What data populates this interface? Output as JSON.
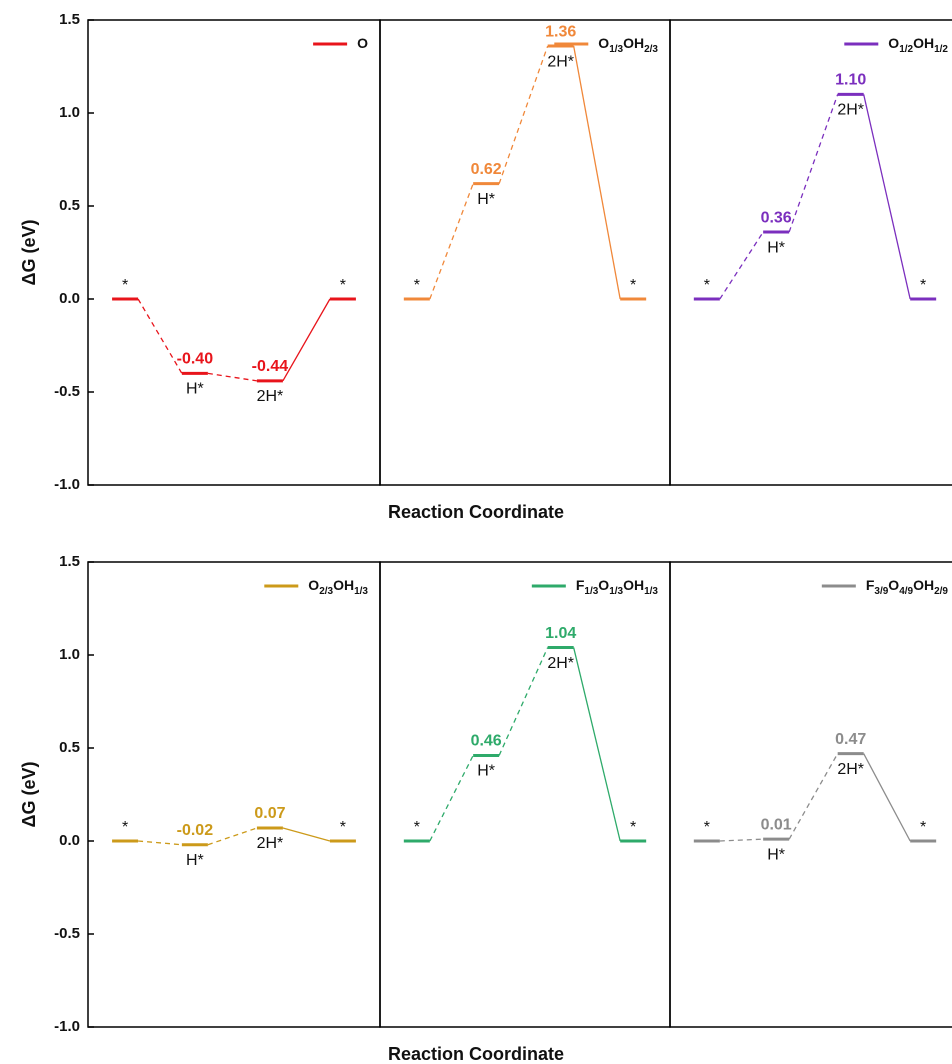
{
  "chart_data": [
    {
      "type": "energy",
      "ylabel": "ΔG (eV)",
      "xlabel": "Reaction Coordinate",
      "ylim": [
        -1,
        1.5
      ],
      "yticks": [
        {
          "value": 1.5,
          "label": "1.5"
        },
        {
          "value": 1,
          "label": "1.0"
        },
        {
          "value": 0.5,
          "label": "0.5"
        },
        {
          "value": 0,
          "label": "0.0"
        },
        {
          "value": -0.5,
          "label": "-0.5"
        },
        {
          "value": -1,
          "label": "-1.0"
        }
      ],
      "panels": [
        {
          "categories": [
            "*",
            "H*",
            "2H*",
            "*"
          ],
          "series": [
            {
              "name": "O",
              "color": "#e8141b",
              "values": [
                0,
                -0.4,
                -0.44,
                0
              ],
              "value_labels": [
                null,
                "-0.40",
                "-0.44",
                null
              ]
            }
          ]
        },
        {
          "categories": [
            "*",
            "H*",
            "2H*",
            "*"
          ],
          "series": [
            {
              "name": "O1/3OH2/3",
              "color": "#f0883a",
              "values": [
                0,
                0.62,
                1.36,
                0
              ],
              "value_labels": [
                null,
                "0.62",
                "1.36",
                null
              ]
            }
          ]
        },
        {
          "categories": [
            "*",
            "H*",
            "2H*",
            "*"
          ],
          "series": [
            {
              "name": "O1/2OH1/2",
              "color": "#7b2fbe",
              "values": [
                0,
                0.36,
                1.1,
                0
              ],
              "value_labels": [
                null,
                "0.36",
                "1.10",
                null
              ]
            }
          ]
        }
      ]
    },
    {
      "type": "energy",
      "ylabel": "ΔG (eV)",
      "xlabel": "Reaction Coordinate",
      "ylim": [
        -1,
        1.5
      ],
      "yticks": [
        {
          "value": 1.5,
          "label": "1.5"
        },
        {
          "value": 1,
          "label": "1.0"
        },
        {
          "value": 0.5,
          "label": "0.5"
        },
        {
          "value": 0,
          "label": "0.0"
        },
        {
          "value": -0.5,
          "label": "-0.5"
        },
        {
          "value": -1,
          "label": "-1.0"
        }
      ],
      "panels": [
        {
          "categories": [
            "*",
            "H*",
            "2H*",
            "*"
          ],
          "series": [
            {
              "name": "O2/3OH1/3",
              "color": "#cc9a1a",
              "values": [
                0,
                -0.02,
                0.07,
                0
              ],
              "value_labels": [
                null,
                "-0.02",
                "0.07",
                null
              ]
            }
          ]
        },
        {
          "categories": [
            "*",
            "H*",
            "2H*",
            "*"
          ],
          "series": [
            {
              "name": "F1/3O1/3OH1/3",
              "color": "#2eaa6a",
              "values": [
                0,
                0.46,
                1.04,
                0
              ],
              "value_labels": [
                null,
                "0.46",
                "1.04",
                null
              ]
            }
          ]
        },
        {
          "categories": [
            "*",
            "H*",
            "2H*",
            "*"
          ],
          "series": [
            {
              "name": "F3/9O4/9OH2/9",
              "color": "#8c8c8c",
              "values": [
                0,
                0.01,
                0.47,
                0
              ],
              "value_labels": [
                null,
                "0.01",
                "0.47",
                null
              ]
            }
          ]
        }
      ]
    }
  ]
}
